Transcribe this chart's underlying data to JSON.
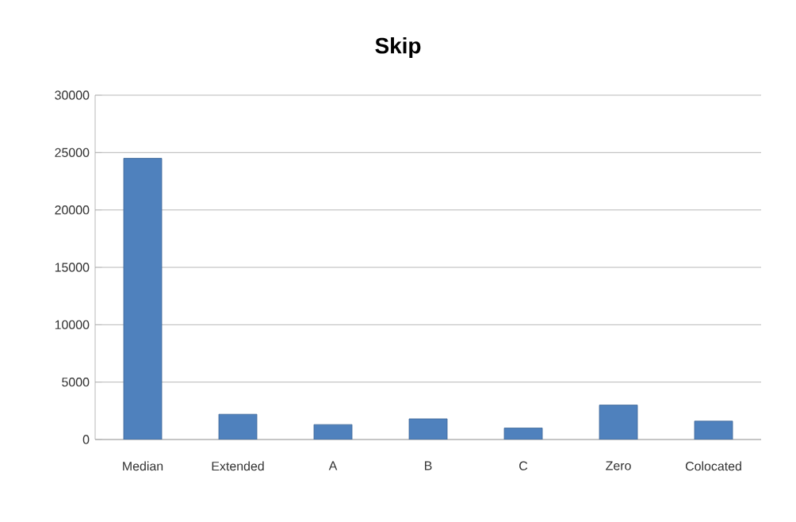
{
  "chart_data": {
    "type": "bar",
    "title": "Skip",
    "categories": [
      "Median",
      "Extended",
      "A",
      "B",
      "C",
      "Zero",
      "Colocated"
    ],
    "values": [
      24500,
      2200,
      1300,
      1800,
      1000,
      3000,
      1600
    ],
    "color": "#4f81bd",
    "ylim": [
      0,
      30000
    ],
    "yticks": [
      0,
      5000,
      10000,
      15000,
      20000,
      25000,
      30000
    ],
    "grid": "y"
  }
}
